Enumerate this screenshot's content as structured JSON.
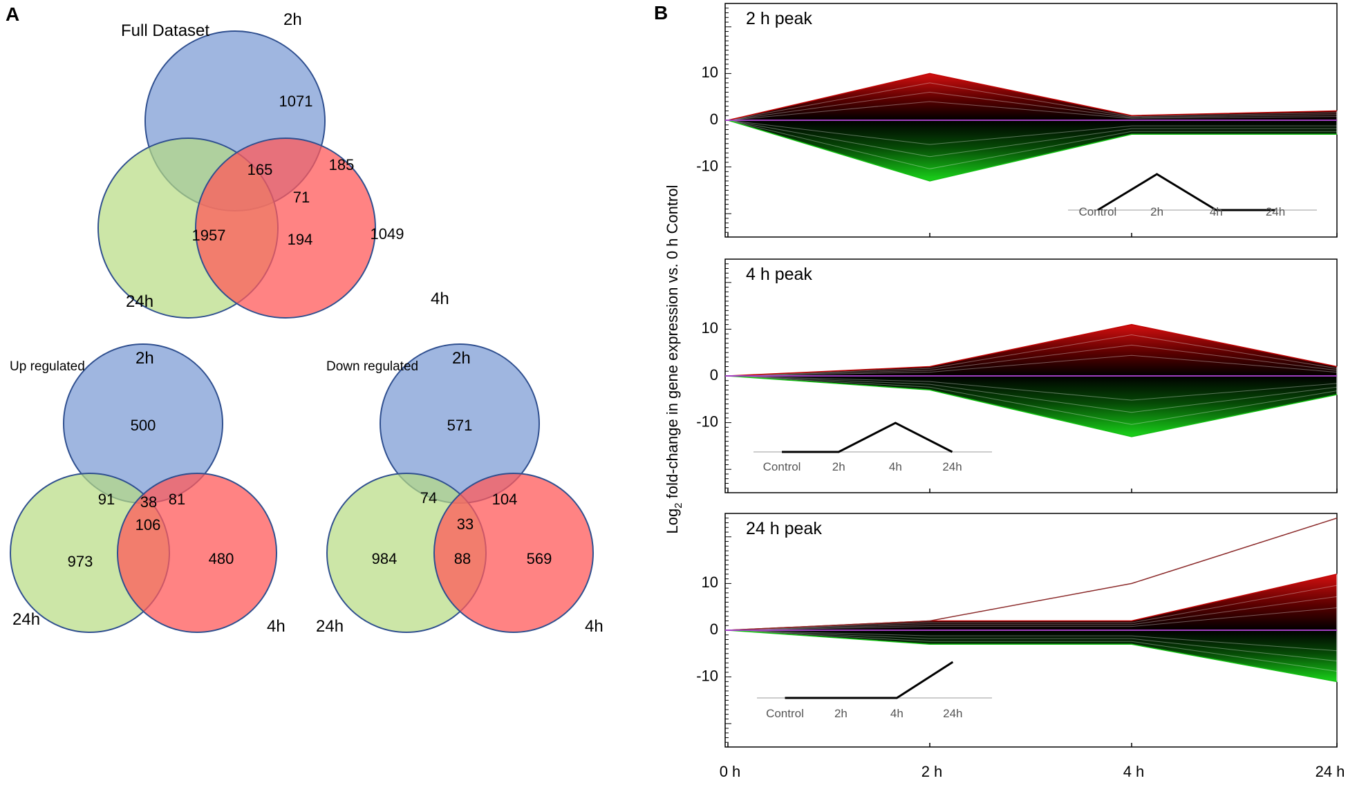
{
  "panel_a": {
    "letter": "A",
    "venns": [
      {
        "id": "full",
        "title": "Full Dataset",
        "sets": {
          "a": "2h",
          "b": "24h",
          "c": "4h"
        },
        "counts": {
          "a_only": 1071,
          "b_only": 1957,
          "c_only": 1049,
          "ab": 165,
          "ac": 185,
          "bc": 194,
          "abc": 71
        }
      },
      {
        "id": "up",
        "title": "Up regulated",
        "sets": {
          "a": "2h",
          "b": "24h",
          "c": "4h"
        },
        "counts": {
          "a_only": 500,
          "b_only": 973,
          "c_only": 480,
          "ab": 91,
          "ac": 81,
          "bc": 106,
          "abc": 38
        }
      },
      {
        "id": "down",
        "title": "Down regulated",
        "sets": {
          "a": "2h",
          "b": "24h",
          "c": "4h"
        },
        "counts": {
          "a_only": 571,
          "b_only": 984,
          "c_only": 569,
          "ab": 74,
          "ac": 104,
          "bc": 88,
          "abc": 33
        }
      }
    ],
    "colors": {
      "a": "#8ea9db",
      "b": "#c0e090",
      "c": "#ff6666",
      "outline": "#2f4f8f"
    }
  },
  "panel_b": {
    "letter": "B",
    "ylabel_main": "Log",
    "ylabel_sub": "2",
    "ylabel_rest": " fold-change in gene expression vs. 0 h Control",
    "x_ticks": [
      "0 h",
      "2 h",
      "4 h",
      "24 h"
    ],
    "y_ticks": [
      "10",
      "0",
      "-10"
    ],
    "colors": {
      "up": "#c00000",
      "down": "#10c010",
      "baseline": "#a040c0"
    },
    "inset_labels": [
      "Control",
      "2h",
      "4h",
      "24h"
    ]
  },
  "chart_data": [
    {
      "type": "line",
      "title": "2 h peak",
      "x": [
        "0 h",
        "2 h",
        "4 h",
        "24 h"
      ],
      "series": [
        {
          "name": "upper envelope",
          "values": [
            0,
            10,
            1,
            2
          ]
        },
        {
          "name": "lower envelope",
          "values": [
            0,
            -13,
            -3,
            -3
          ]
        }
      ],
      "inset_pattern": {
        "categories": [
          "Control",
          "2h",
          "4h",
          "24h"
        ],
        "values": [
          0,
          1,
          0,
          0
        ]
      },
      "ylabel": "Log2 fold-change in gene expression vs. 0 h Control",
      "yticks": [
        10,
        0,
        -10
      ],
      "ylim": [
        -25,
        25
      ]
    },
    {
      "type": "line",
      "title": "4 h peak",
      "x": [
        "0 h",
        "2 h",
        "4 h",
        "24 h"
      ],
      "series": [
        {
          "name": "upper envelope",
          "values": [
            0,
            2,
            11,
            2
          ]
        },
        {
          "name": "lower envelope",
          "values": [
            0,
            -3,
            -13,
            -4
          ]
        }
      ],
      "inset_pattern": {
        "categories": [
          "Control",
          "2h",
          "4h",
          "24h"
        ],
        "values": [
          0,
          0,
          1,
          0
        ]
      },
      "ylabel": "Log2 fold-change in gene expression vs. 0 h Control",
      "yticks": [
        10,
        0,
        -10
      ],
      "ylim": [
        -25,
        25
      ]
    },
    {
      "type": "line",
      "title": "24 h peak",
      "x": [
        "0 h",
        "2 h",
        "4 h",
        "24 h"
      ],
      "series": [
        {
          "name": "upper envelope",
          "values": [
            0,
            2,
            2,
            12
          ]
        },
        {
          "name": "lower envelope",
          "values": [
            0,
            -3,
            -3,
            -11
          ]
        },
        {
          "name": "outlier",
          "values": [
            0,
            2,
            10,
            24
          ]
        }
      ],
      "inset_pattern": {
        "categories": [
          "Control",
          "2h",
          "4h",
          "24h"
        ],
        "values": [
          0,
          0,
          0,
          1
        ]
      },
      "ylabel": "Log2 fold-change in gene expression vs. 0 h Control",
      "yticks": [
        10,
        0,
        -10
      ],
      "ylim": [
        -25,
        25
      ]
    }
  ]
}
